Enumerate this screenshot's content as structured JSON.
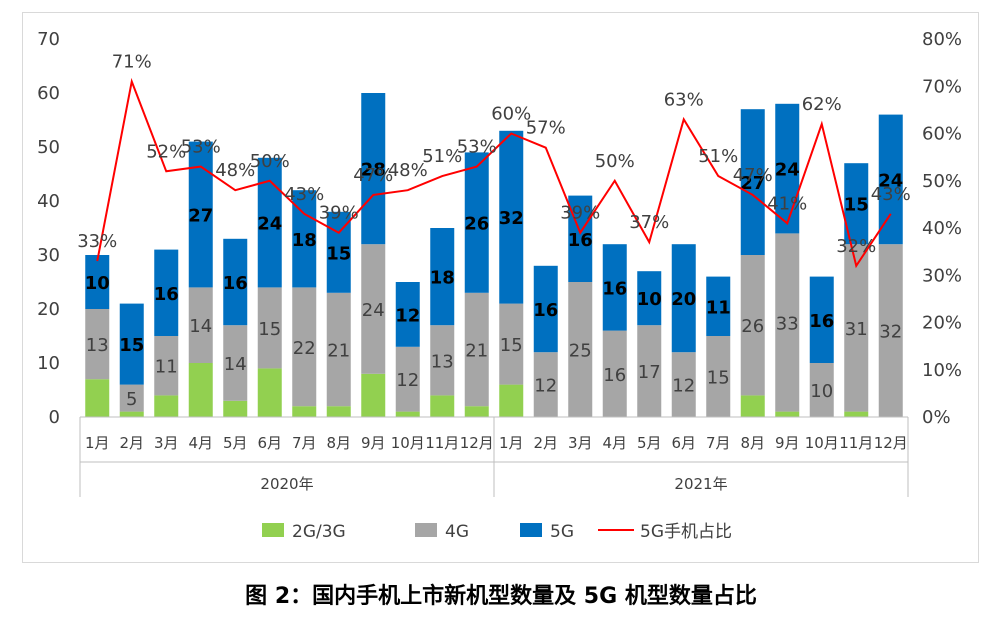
{
  "chart_data": {
    "type": "bar",
    "stacked": true,
    "categories": [
      "1月",
      "2月",
      "3月",
      "4月",
      "5月",
      "6月",
      "7月",
      "8月",
      "9月",
      "10月",
      "11月",
      "12月",
      "1月",
      "2月",
      "3月",
      "4月",
      "5月",
      "6月",
      "7月",
      "8月",
      "9月",
      "10月",
      "11月",
      "12月"
    ],
    "groups": [
      {
        "label": "2020年",
        "from": 0,
        "to": 11
      },
      {
        "label": "2021年",
        "from": 12,
        "to": 23
      }
    ],
    "series": [
      {
        "name": "2G/3G",
        "color": "#92d050",
        "values": [
          7,
          1,
          4,
          10,
          3,
          9,
          2,
          2,
          8,
          1,
          4,
          2,
          6,
          0,
          0,
          0,
          0,
          0,
          0,
          4,
          1,
          0,
          1,
          0
        ]
      },
      {
        "name": "4G",
        "color": "#a6a6a6",
        "values": [
          13,
          5,
          11,
          14,
          14,
          15,
          22,
          21,
          24,
          12,
          13,
          21,
          15,
          12,
          25,
          16,
          17,
          12,
          15,
          26,
          33,
          10,
          31,
          32
        ]
      },
      {
        "name": "5G",
        "color": "#0070c0",
        "values": [
          10,
          15,
          16,
          27,
          16,
          24,
          18,
          15,
          28,
          12,
          18,
          26,
          32,
          16,
          16,
          16,
          10,
          20,
          11,
          27,
          24,
          16,
          15,
          24
        ]
      }
    ],
    "line_series": {
      "name": "5G手机占比",
      "color": "#ff0000",
      "axis": "right",
      "values": [
        33,
        71,
        52,
        53,
        48,
        50,
        43,
        39,
        47,
        48,
        51,
        53,
        60,
        57,
        39,
        50,
        37,
        63,
        51,
        47,
        41,
        62,
        32,
        43
      ],
      "labels": [
        "33%",
        "71%",
        "52%",
        "53%",
        "48%",
        "50%",
        "43%",
        "39%",
        "47%",
        "48%",
        "51%",
        "53%",
        "60%",
        "57%",
        "39%",
        "50%",
        "37%",
        "63%",
        "51%",
        "47%",
        "41%",
        "62%",
        "32%",
        "43%"
      ]
    },
    "y_left": {
      "min": 0,
      "max": 70,
      "ticks": [
        "0",
        "10",
        "20",
        "30",
        "40",
        "50",
        "60",
        "70"
      ]
    },
    "y_right": {
      "min": 0,
      "max": 80,
      "ticks": [
        "0%",
        "10%",
        "20%",
        "30%",
        "40%",
        "50%",
        "60%",
        "70%",
        "80%"
      ]
    },
    "grid": false,
    "legend_position": "bottom"
  },
  "caption": "图 2：国内手机上市新机型数量及 5G 机型数量占比"
}
